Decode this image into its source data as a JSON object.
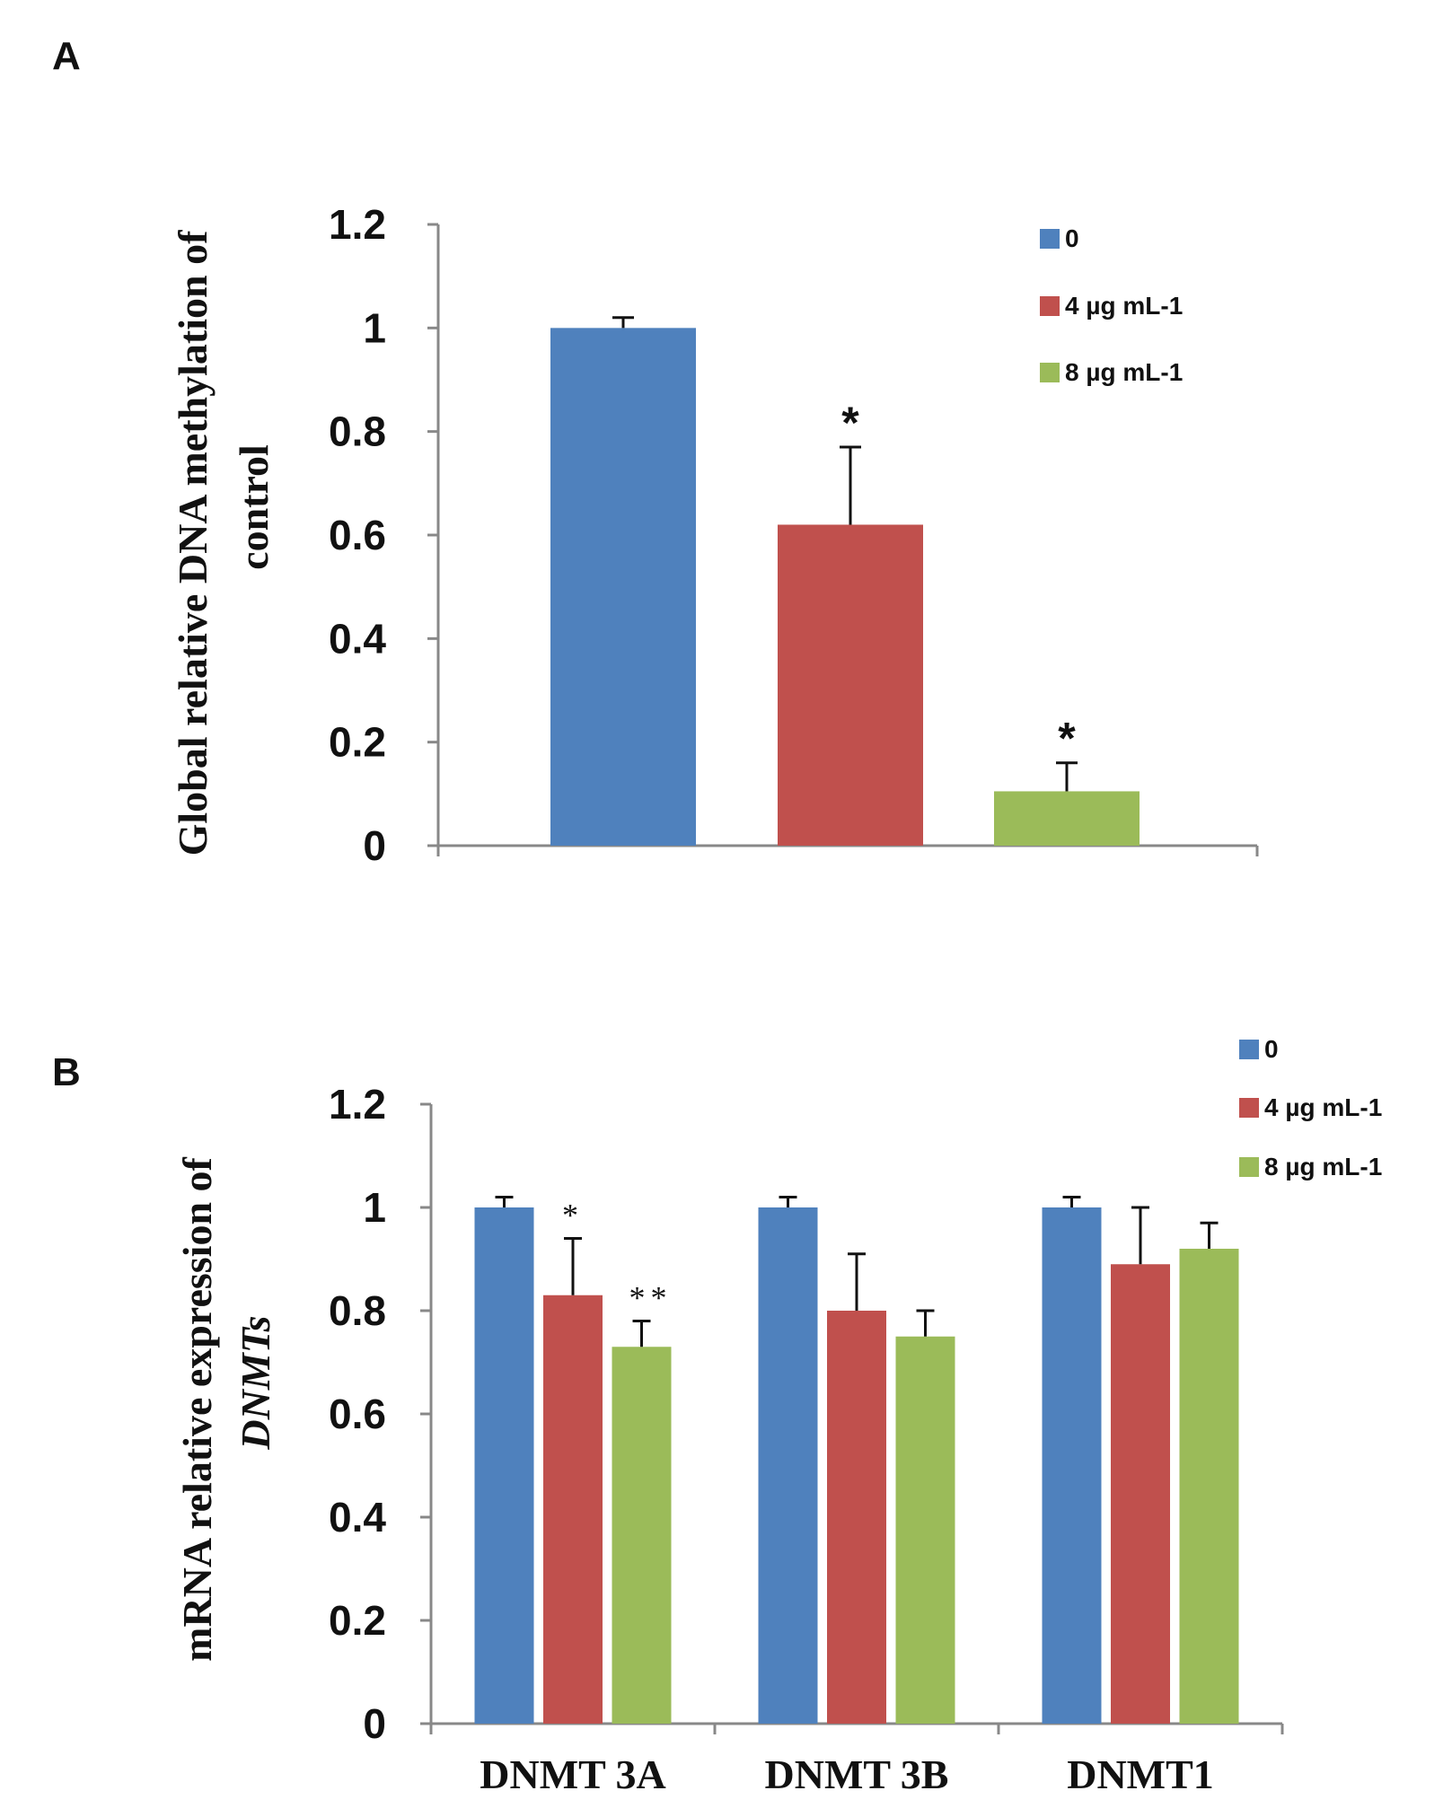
{
  "colors": {
    "s0": "#4f81bd",
    "s4": "#c0504d",
    "s8": "#9bbb59",
    "axis": "#888888"
  },
  "chart_data": [
    {
      "panel": "A",
      "type": "bar",
      "ylabel_line1": "Global  relative DNA methylation of",
      "ylabel_line2": "control",
      "ylim": [
        0,
        1.2
      ],
      "yticks": [
        "0",
        "0.2",
        "0.4",
        "0.6",
        "0.8",
        "1",
        "1.2"
      ],
      "legend": [
        "0",
        "4 µg mL-1",
        "8 µg mL-1"
      ],
      "series": [
        {
          "name": "0",
          "value": 1.0,
          "error": 0.02,
          "sig": ""
        },
        {
          "name": "4 µg mL-1",
          "value": 0.62,
          "error": 0.15,
          "sig": "*"
        },
        {
          "name": "8 µg mL-1",
          "value": 0.105,
          "error": 0.055,
          "sig": "*"
        }
      ]
    },
    {
      "panel": "B",
      "type": "bar",
      "ylabel_line1": "mRNA relative expression of",
      "ylabel_line2": "DNMTs",
      "ylim": [
        0,
        1.2
      ],
      "yticks": [
        "0",
        "0.2",
        "0.4",
        "0.6",
        "0.8",
        "1",
        "1.2"
      ],
      "legend": [
        "0",
        "4 µg mL-1",
        "8 µg mL-1"
      ],
      "categories": [
        "DNMT 3A",
        "DNMT 3B",
        "DNMT1"
      ],
      "series": [
        {
          "name": "0",
          "values": [
            1.0,
            1.0,
            1.0
          ],
          "errors": [
            0.02,
            0.02,
            0.02
          ],
          "sig": [
            "",
            "",
            ""
          ]
        },
        {
          "name": "4 µg mL-1",
          "values": [
            0.83,
            0.8,
            0.89
          ],
          "errors": [
            0.11,
            0.11,
            0.11
          ],
          "sig": [
            "*",
            "",
            ""
          ]
        },
        {
          "name": "8 µg mL-1",
          "values": [
            0.73,
            0.75,
            0.92
          ],
          "errors": [
            0.05,
            0.05,
            0.05
          ],
          "sig": [
            "**",
            "",
            ""
          ]
        }
      ]
    }
  ]
}
